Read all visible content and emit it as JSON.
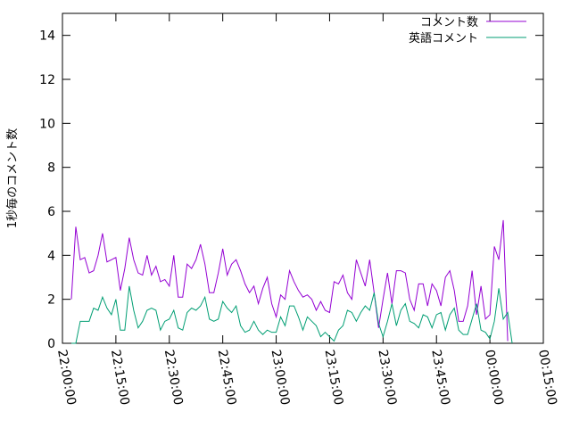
{
  "chart_data": {
    "type": "line",
    "title": "",
    "xlabel": "",
    "ylabel": "1秒毎のコメント数",
    "ylim": [
      0,
      15
    ],
    "yticks": [
      0,
      2,
      4,
      6,
      8,
      10,
      12,
      14
    ],
    "xlim": [
      "22:00:00",
      "00:15:00"
    ],
    "xticks": [
      "22:00:00",
      "22:15:00",
      "22:30:00",
      "22:45:00",
      "23:00:00",
      "23:15:00",
      "23:30:00",
      "23:45:00",
      "00:00:00",
      "00:15:00"
    ],
    "grid": false,
    "legend": "top-right",
    "x_step_minutes": 1.25,
    "series": [
      {
        "name": "コメント数",
        "color": "#9400d3",
        "values": [
          2.0,
          5.3,
          3.8,
          3.9,
          3.2,
          3.3,
          4.0,
          5.0,
          3.7,
          3.8,
          3.9,
          2.4,
          3.4,
          4.8,
          3.8,
          3.2,
          3.1,
          4.0,
          3.1,
          3.5,
          2.8,
          2.9,
          2.6,
          4.0,
          2.1,
          2.1,
          3.6,
          3.4,
          3.8,
          4.5,
          3.6,
          2.3,
          2.3,
          3.2,
          4.3,
          3.1,
          3.6,
          3.8,
          3.3,
          2.7,
          2.3,
          2.6,
          1.8,
          2.5,
          3.0,
          1.8,
          1.2,
          2.2,
          2.0,
          3.3,
          2.8,
          2.4,
          2.1,
          2.2,
          2.0,
          1.5,
          1.9,
          1.5,
          1.4,
          2.8,
          2.7,
          3.1,
          2.3,
          2.0,
          3.8,
          3.2,
          2.6,
          3.8,
          2.3,
          0.7,
          2.0,
          3.2,
          1.8,
          3.3,
          3.3,
          3.2,
          2.0,
          1.5,
          2.7,
          2.7,
          1.7,
          2.7,
          2.4,
          1.7,
          3.0,
          3.3,
          2.4,
          1.0,
          1.0,
          1.7,
          3.3,
          1.3,
          2.6,
          1.1,
          1.3,
          4.4,
          3.8,
          5.6,
          0.1
        ]
      },
      {
        "name": "英語コメント",
        "color": "#009e73",
        "values": [
          0.0,
          0.0,
          1.0,
          1.0,
          1.0,
          1.6,
          1.5,
          2.1,
          1.6,
          1.3,
          2.0,
          0.6,
          0.6,
          2.6,
          1.5,
          0.7,
          1.0,
          1.5,
          1.6,
          1.5,
          0.6,
          1.0,
          1.1,
          1.5,
          0.7,
          0.6,
          1.4,
          1.6,
          1.5,
          1.7,
          2.1,
          1.1,
          1.0,
          1.1,
          1.9,
          1.6,
          1.4,
          1.7,
          0.8,
          0.5,
          0.6,
          1.0,
          0.6,
          0.4,
          0.6,
          0.5,
          0.5,
          1.2,
          0.8,
          1.7,
          1.7,
          1.2,
          0.6,
          1.2,
          1.0,
          0.8,
          0.3,
          0.5,
          0.3,
          0.1,
          0.6,
          0.8,
          1.5,
          1.4,
          1.0,
          1.4,
          1.7,
          1.5,
          2.3,
          0.9,
          0.3,
          1.0,
          1.8,
          0.8,
          1.5,
          1.8,
          1.0,
          0.9,
          0.7,
          1.3,
          1.2,
          0.7,
          1.3,
          1.4,
          0.6,
          1.3,
          1.6,
          0.6,
          0.4,
          0.4,
          1.1,
          1.8,
          0.6,
          0.5,
          0.2,
          1.0,
          2.5,
          1.1,
          1.4,
          0.0
        ]
      }
    ]
  }
}
